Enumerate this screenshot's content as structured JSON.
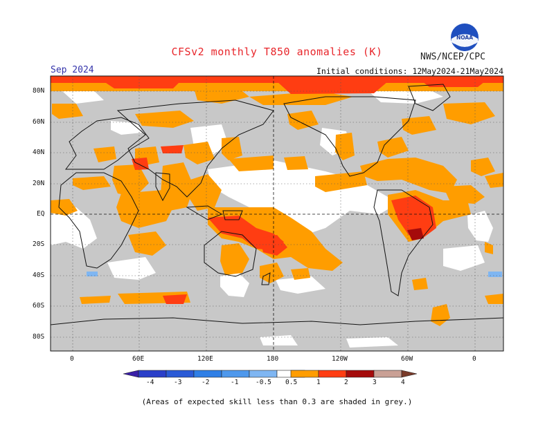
{
  "header": {
    "title": "CFSv2 monthly T850 anomalies (K)",
    "organization": "NWS/NCEP/CPC",
    "logo_text": "NOAA",
    "forecast_month": "Sep 2024",
    "initial_conditions": "Initial conditions: 12May2024-21May2024"
  },
  "map": {
    "lat_labels": [
      "80N",
      "60N",
      "40N",
      "20N",
      "EQ",
      "20S",
      "40S",
      "60S",
      "80S"
    ],
    "lon_labels": [
      "0",
      "60E",
      "120E",
      "180",
      "120W",
      "60W",
      "0"
    ],
    "skill_mask_color": "#c8c8c8",
    "ocean_land_background": "#ffffff",
    "anomaly_regions": [
      {
        "region": "Arctic band",
        "category": "1 to 2"
      },
      {
        "region": "Maritime Continent / Coral Sea",
        "category": "1 to 2"
      },
      {
        "region": "Central South America",
        "category": "2 to 3"
      },
      {
        "region": "Eastern Pacific / Caribbean",
        "category": "0.5 to 1"
      },
      {
        "region": "Southern Ocean south of Africa",
        "category": "1 to 2"
      },
      {
        "region": "South Atlantic near Cape",
        "category": "-1 to -0.5"
      }
    ]
  },
  "colorbar": {
    "labels": [
      "-4",
      "-3",
      "-2",
      "-1",
      "-0.5",
      "0.5",
      "1",
      "2",
      "3",
      "4"
    ],
    "colors": [
      "#3a1fa8",
      "#2a3fc9",
      "#2f6fe0",
      "#4e98ec",
      "#7fb6f2",
      "#ffffff",
      "#ff9d00",
      "#ff3d12",
      "#a50b0b",
      "#c9a095",
      "#7a3b2a"
    ]
  },
  "footnote": "(Areas of expected skill less than 0.3 are shaded in grey.)"
}
